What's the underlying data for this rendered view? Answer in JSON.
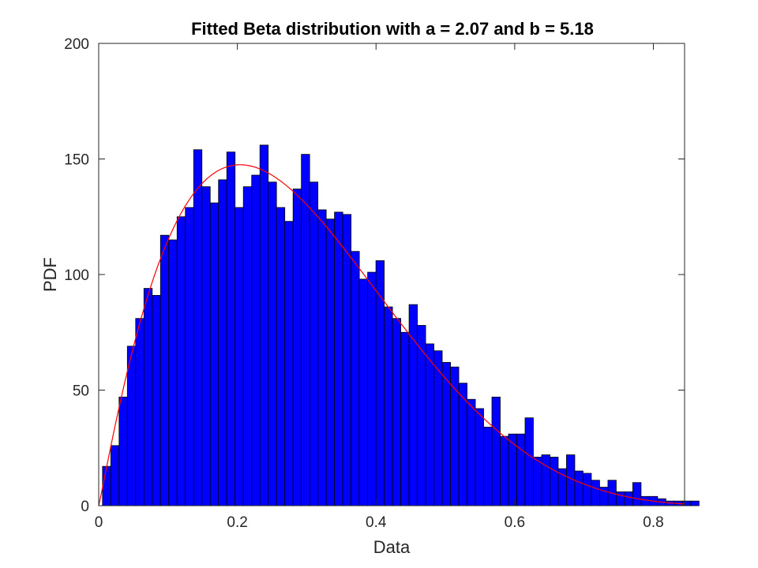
{
  "chart_data": {
    "type": "bar",
    "title": "Fitted Beta distribution with a = 2.07 and b = 5.18",
    "xlabel": "Data",
    "ylabel": "PDF",
    "xlim": [
      0,
      0.845
    ],
    "ylim": [
      0,
      200
    ],
    "x_ticks": [
      "0",
      "0.2",
      "0.4",
      "0.6",
      "0.8"
    ],
    "y_ticks": [
      "0",
      "50",
      "100",
      "150",
      "200"
    ],
    "grid": false,
    "legend": "none",
    "bin_start": 0.0055,
    "bin_width": 0.01195,
    "histogram_values": [
      17,
      26,
      47,
      69,
      81,
      94,
      91,
      117,
      115,
      125,
      129,
      154,
      138,
      131,
      141,
      153,
      129,
      138,
      143,
      156,
      140,
      129,
      123,
      137,
      152,
      140,
      128,
      124,
      127,
      126,
      110,
      98,
      101,
      106,
      86,
      81,
      75,
      87,
      78,
      70,
      67,
      62,
      60,
      53,
      46,
      42,
      34,
      47,
      30,
      31,
      31,
      38,
      21,
      22,
      21,
      16,
      22,
      15,
      14,
      11,
      8,
      11,
      6,
      6,
      10,
      4,
      4,
      3,
      2,
      2,
      2,
      2
    ],
    "fit": {
      "a": 2.07,
      "b": 5.18,
      "peak": 147.5
    },
    "colors": {
      "bars": "#0000ff",
      "bar_edge": "#000000",
      "fit_line": "#ff0000",
      "axes": "#262626"
    }
  }
}
